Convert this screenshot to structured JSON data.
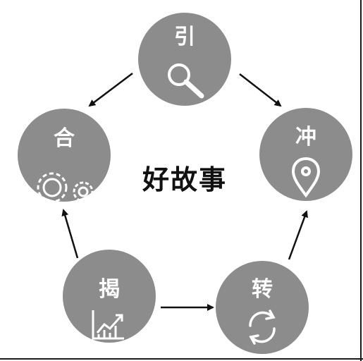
{
  "diagram": {
    "title": "好故事",
    "nodes": [
      {
        "id": "yin",
        "label": "引",
        "icon": "magnifier-icon"
      },
      {
        "id": "chong",
        "label": "冲",
        "icon": "location-pin-icon"
      },
      {
        "id": "zhuan",
        "label": "转",
        "icon": "refresh-cycle-icon"
      },
      {
        "id": "jie",
        "label": "揭",
        "icon": "rising-chart-icon"
      },
      {
        "id": "he",
        "label": "合",
        "icon": "gears-icon"
      }
    ],
    "edges": [
      {
        "from": "yin",
        "to": "chong"
      },
      {
        "from": "zhuan",
        "to": "chong"
      },
      {
        "from": "jie",
        "to": "zhuan"
      },
      {
        "from": "jie",
        "to": "he"
      },
      {
        "from": "yin",
        "to": "he"
      }
    ],
    "colors": {
      "node_fill": "#8c8c8c",
      "arrow": "#111111",
      "icon": "#ffffff"
    }
  }
}
